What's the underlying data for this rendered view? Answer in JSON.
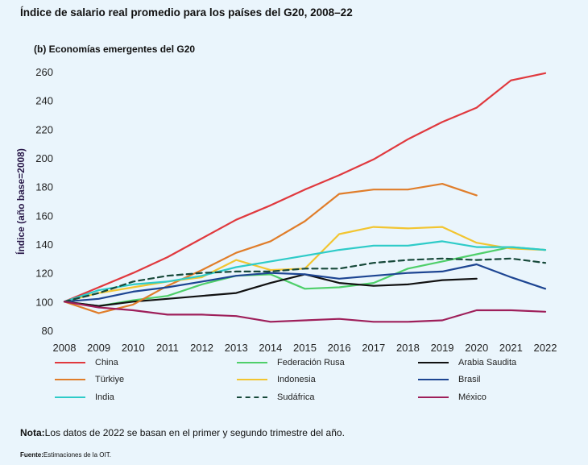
{
  "title": "Índice de salario real promedio para los países del G20, 2008–22",
  "subtitle": "(b) Economías emergentes del G20",
  "note_label": "Nota:",
  "note_text": "Los datos de 2022 se basan en el primer y segundo trimestre del año.",
  "source_label": "Fuente:",
  "source_text": "Estimaciones de la OIT.",
  "chart_data": {
    "type": "line",
    "ylabel": "Índice (año base=2008)",
    "xlabel": "",
    "x": [
      2008,
      2009,
      2010,
      2011,
      2012,
      2013,
      2014,
      2015,
      2016,
      2017,
      2018,
      2019,
      2020,
      2021,
      2022
    ],
    "ylim": [
      80,
      260
    ],
    "yticks": [
      80,
      100,
      120,
      140,
      160,
      180,
      200,
      220,
      240,
      260
    ],
    "grid": false,
    "legend_position": "bottom",
    "series": [
      {
        "name": "China",
        "color": "#e0393e",
        "dashed": false,
        "values": [
          100,
          110,
          120,
          131,
          144,
          157,
          167,
          178,
          188,
          199,
          213,
          225,
          235,
          254,
          259
        ]
      },
      {
        "name": "Federación Rusa",
        "color": "#4fcf6a",
        "dashed": false,
        "values": [
          100,
          97,
          101,
          104,
          112,
          118,
          119,
          109,
          110,
          113,
          123,
          128,
          133,
          138,
          136
        ]
      },
      {
        "name": "Arabia Saudita",
        "color": "#111111",
        "dashed": false,
        "values": [
          100,
          97,
          100,
          102,
          104,
          106,
          113,
          119,
          113,
          111,
          112,
          115,
          116,
          null,
          null
        ]
      },
      {
        "name": "Türkiye",
        "color": "#e07d2a",
        "dashed": false,
        "values": [
          100,
          92,
          98,
          111,
          122,
          134,
          142,
          156,
          175,
          178,
          178,
          182,
          174,
          null,
          null
        ]
      },
      {
        "name": "Indonesia",
        "color": "#f2c531",
        "dashed": false,
        "values": [
          100,
          106,
          110,
          114,
          117,
          129,
          122,
          123,
          147,
          152,
          151,
          152,
          141,
          137,
          136
        ]
      },
      {
        "name": "Brasil",
        "color": "#1d4592",
        "dashed": false,
        "values": [
          100,
          102,
          107,
          110,
          114,
          118,
          120,
          119,
          116,
          118,
          120,
          121,
          126,
          117,
          109
        ]
      },
      {
        "name": "India",
        "color": "#2ecbc8",
        "dashed": false,
        "values": [
          100,
          108,
          112,
          114,
          118,
          124,
          128,
          132,
          136,
          139,
          139,
          142,
          138,
          138,
          136
        ]
      },
      {
        "name": "Sudáfrica",
        "color": "#17493a",
        "dashed": true,
        "values": [
          100,
          106,
          114,
          118,
          120,
          121,
          121,
          123,
          123,
          127,
          129,
          130,
          129,
          130,
          127
        ]
      },
      {
        "name": "México",
        "color": "#9e1f5a",
        "dashed": false,
        "values": [
          100,
          96,
          94,
          91,
          91,
          90,
          86,
          87,
          88,
          86,
          86,
          87,
          94,
          94,
          93
        ]
      }
    ]
  }
}
